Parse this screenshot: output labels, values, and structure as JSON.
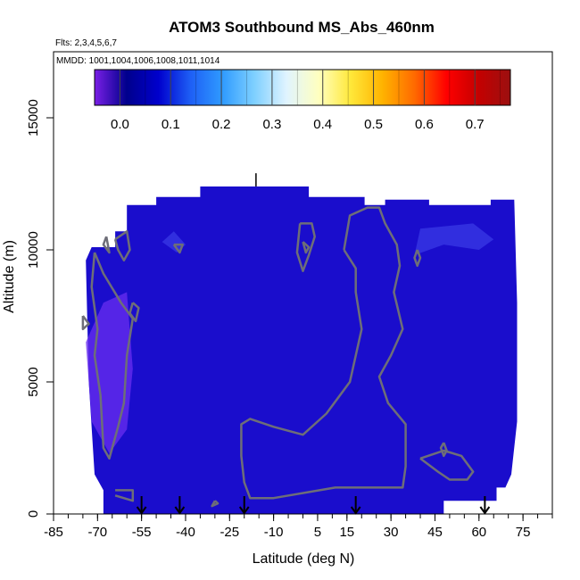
{
  "chart_data": {
    "type": "heatmap",
    "title": "ATOM3 Southbound MS_Abs_460nm",
    "subtitle_lines": [
      "Flts: 2,3,4,5,6,7",
      "MMDD: 1001,1004,1006,1008,1011,1014"
    ],
    "xlabel": "Latitude (deg N)",
    "ylabel": "Altitude (m)",
    "xlim": [
      -85,
      85
    ],
    "ylim": [
      0,
      17500
    ],
    "x_ticks": [
      -85,
      -70,
      -55,
      -40,
      -25,
      -10,
      5,
      15,
      30,
      45,
      60,
      75
    ],
    "y_ticks": [
      0,
      5000,
      10000,
      15000
    ],
    "colorbar": {
      "ticks": [
        0.0,
        0.1,
        0.2,
        0.3,
        0.4,
        0.5,
        0.6,
        0.7
      ],
      "tick_labels": [
        "0.0",
        "0.1",
        "0.2",
        "0.3",
        "0.4",
        "0.5",
        "0.6",
        "0.7"
      ],
      "range": [
        -0.05,
        0.77
      ],
      "colors": [
        "#7a1fe6",
        "#00008c",
        "#0000cd",
        "#1e5ff5",
        "#2f9bff",
        "#7fd0ff",
        "#e0f4ff",
        "#ffffc0",
        "#ffe83a",
        "#ffb300",
        "#ff6a00",
        "#ff0000",
        "#c40000",
        "#9b1010"
      ]
    },
    "field_color": "#1a0dcc",
    "region_outline": [
      [
        -68,
        0
      ],
      [
        -68,
        900
      ],
      [
        -71,
        1500
      ],
      [
        -73,
        5000
      ],
      [
        -74,
        9600
      ],
      [
        -72,
        10100
      ],
      [
        -64,
        10100
      ],
      [
        -64,
        10700
      ],
      [
        -60,
        10700
      ],
      [
        -60,
        11700
      ],
      [
        -50,
        11700
      ],
      [
        -50,
        12000
      ],
      [
        -35,
        12000
      ],
      [
        -35,
        12400
      ],
      [
        2,
        12400
      ],
      [
        2,
        12000
      ],
      [
        21,
        12000
      ],
      [
        21,
        11700
      ],
      [
        28,
        11700
      ],
      [
        28,
        11900
      ],
      [
        43,
        11900
      ],
      [
        43,
        11700
      ],
      [
        64,
        11700
      ],
      [
        64,
        11900
      ],
      [
        72,
        11900
      ],
      [
        73,
        8000
      ],
      [
        73,
        3500
      ],
      [
        71,
        1500
      ],
      [
        69,
        1000
      ],
      [
        66,
        1000
      ],
      [
        66,
        500
      ],
      [
        48,
        500
      ],
      [
        48,
        0
      ]
    ],
    "enhanced_areas": [
      {
        "name": "southern-plume",
        "value": -0.02,
        "points": [
          [
            -74,
            6500
          ],
          [
            -68,
            8000
          ],
          [
            -60,
            8400
          ],
          [
            -58,
            5500
          ],
          [
            -60,
            3200
          ],
          [
            -66,
            2300
          ],
          [
            -72,
            3500
          ]
        ]
      },
      {
        "name": "upper-patch",
        "value": 0.02,
        "points": [
          [
            -48,
            10300
          ],
          [
            -44,
            10700
          ],
          [
            -40,
            10200
          ],
          [
            -43,
            9900
          ]
        ]
      },
      {
        "name": "northern-band",
        "value": 0.02,
        "points": [
          [
            38,
            9800
          ],
          [
            40,
            10800
          ],
          [
            58,
            11000
          ],
          [
            65,
            10400
          ],
          [
            60,
            10000
          ],
          [
            48,
            10200
          ]
        ]
      }
    ],
    "contours": [
      {
        "value": 0.0,
        "points": [
          [
            -71,
            9900
          ],
          [
            -68,
            9100
          ],
          [
            -62,
            8000
          ],
          [
            -58,
            7400
          ],
          [
            -60,
            6000
          ],
          [
            -61,
            4200
          ],
          [
            -63,
            3300
          ],
          [
            -66,
            2100
          ],
          [
            -68,
            2500
          ],
          [
            -69,
            4500
          ],
          [
            -71,
            6000
          ],
          [
            -70,
            7000
          ],
          [
            -72,
            8600
          ],
          [
            -71,
            9900
          ]
        ]
      },
      {
        "value": 0.0,
        "points": [
          [
            -64,
            10400
          ],
          [
            -60,
            10700
          ],
          [
            -59,
            10000
          ],
          [
            -61,
            9600
          ],
          [
            -63,
            10000
          ],
          [
            -64,
            10400
          ]
        ]
      },
      {
        "value": 0.0,
        "points": [
          [
            -67,
            10500
          ],
          [
            -66,
            9900
          ],
          [
            -68,
            10200
          ],
          [
            -67,
            10500
          ]
        ]
      },
      {
        "value": 0.0,
        "points": [
          [
            -58,
            8000
          ],
          [
            -56,
            7800
          ],
          [
            -57,
            7300
          ],
          [
            -59,
            7600
          ],
          [
            -58,
            8000
          ]
        ]
      },
      {
        "value": 0.0,
        "points": [
          [
            -75,
            7500
          ],
          [
            -73,
            7200
          ],
          [
            -75,
            7000
          ],
          [
            -75,
            7500
          ]
        ]
      },
      {
        "value": 0.0,
        "points": [
          [
            14,
            10000
          ],
          [
            16,
            11300
          ],
          [
            22,
            11600
          ],
          [
            26,
            11600
          ],
          [
            28,
            11000
          ],
          [
            32,
            10200
          ],
          [
            33,
            9400
          ],
          [
            31,
            8400
          ],
          [
            34,
            7000
          ],
          [
            30,
            6000
          ],
          [
            26,
            5200
          ],
          [
            29,
            4200
          ],
          [
            35,
            3400
          ],
          [
            35,
            1800
          ],
          [
            34,
            1000
          ],
          [
            25,
            1000
          ],
          [
            11,
            1000
          ],
          [
            -10,
            600
          ],
          [
            -18,
            600
          ],
          [
            -20,
            1200
          ],
          [
            -21,
            2200
          ],
          [
            -21,
            3400
          ],
          [
            -18,
            3600
          ],
          [
            -10,
            3300
          ],
          [
            0,
            3000
          ],
          [
            8,
            3800
          ],
          [
            16,
            5000
          ],
          [
            20,
            7000
          ],
          [
            18,
            8400
          ],
          [
            18,
            9300
          ],
          [
            14,
            10000
          ]
        ]
      },
      {
        "value": 0.0,
        "points": [
          [
            -1,
            11000
          ],
          [
            3,
            11000
          ],
          [
            4,
            10500
          ],
          [
            2,
            9800
          ],
          [
            0,
            9200
          ],
          [
            -2,
            9900
          ],
          [
            -1,
            11000
          ]
        ]
      },
      {
        "value": 0.0,
        "points": [
          [
            0,
            10300
          ],
          [
            2,
            10100
          ],
          [
            1,
            9900
          ],
          [
            0,
            10300
          ]
        ]
      },
      {
        "value": 0.0,
        "points": [
          [
            40,
            2100
          ],
          [
            48,
            2400
          ],
          [
            54,
            2200
          ],
          [
            58,
            1600
          ],
          [
            56,
            1300
          ],
          [
            50,
            1300
          ],
          [
            46,
            1600
          ],
          [
            40,
            2100
          ]
        ]
      },
      {
        "value": 0.0,
        "points": [
          [
            48,
            2700
          ],
          [
            49,
            2400
          ],
          [
            48,
            2200
          ],
          [
            47,
            2500
          ],
          [
            48,
            2700
          ]
        ]
      },
      {
        "value": 0.0,
        "points": [
          [
            39,
            10000
          ],
          [
            40,
            9700
          ],
          [
            39,
            9400
          ],
          [
            38,
            9700
          ],
          [
            39,
            10000
          ]
        ]
      },
      {
        "value": 0.0,
        "points": [
          [
            -44,
            10200
          ],
          [
            -41,
            10200
          ],
          [
            -42,
            9900
          ],
          [
            -44,
            10200
          ]
        ]
      },
      {
        "value": 0.0,
        "points": [
          [
            -64,
            900
          ],
          [
            -58,
            900
          ],
          [
            -58,
            500
          ],
          [
            -64,
            700
          ]
        ]
      },
      {
        "value": 0.0,
        "points": [
          [
            -30,
            500
          ],
          [
            -29,
            400
          ],
          [
            -31,
            300
          ],
          [
            -30,
            500
          ]
        ]
      }
    ],
    "arrows_lat": [
      -55,
      -42,
      -20,
      18,
      62
    ],
    "top_marker_lat": -16
  }
}
